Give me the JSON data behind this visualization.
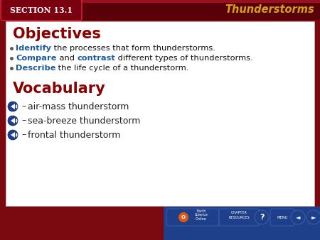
{
  "bg_dark": "#7a0a10",
  "header_text": "Thunderstorms",
  "header_color": "#d4a017",
  "section_label": "SECTION 13.1",
  "section_label_color": "#ffffff",
  "content_bg": "#ffffff",
  "objectives_title": "Objectives",
  "objectives_title_color": "#8b0000",
  "dark_red": "#8b0000",
  "blue_kw": "#1a5aa0",
  "vocab_items": [
    "air-mass thunderstorm",
    "sea-breeze thunderstorm",
    "frontal thunderstorm"
  ],
  "footer_bg": "#1e3f8a",
  "nav_btn_bg": "#2a5aab",
  "figw": 4.5,
  "figh": 3.38,
  "dpi": 100
}
